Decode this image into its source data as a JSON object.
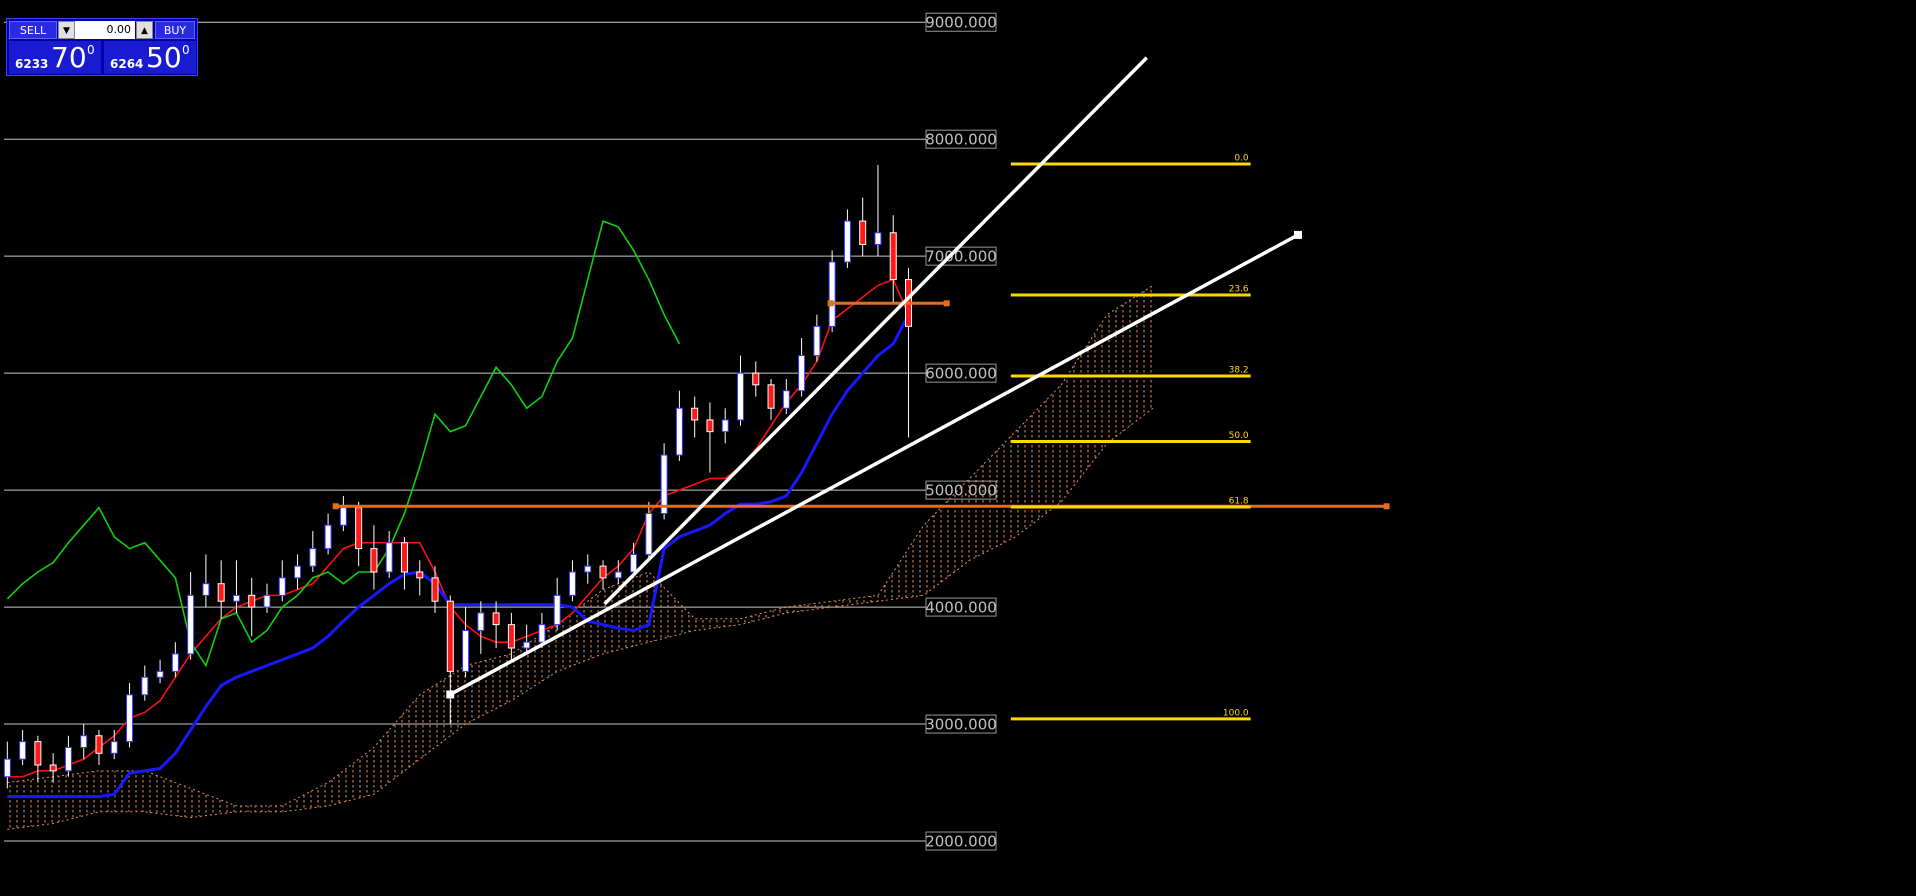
{
  "trade_panel": {
    "sell_label": "SELL",
    "lot": "0.00",
    "buy_label": "BUY",
    "bid": {
      "prefix": "6233",
      "big": "70",
      "sup": "0"
    },
    "ask": {
      "prefix": "6264",
      "big": "50",
      "sup": "0"
    }
  },
  "chart_data": {
    "type": "candlestick",
    "xlim": [
      -0.48,
      124.96
    ],
    "ylim": [
      1530,
      9190
    ],
    "grid": true,
    "yticks": [
      {
        "value": 9000,
        "label": "9000.000"
      },
      {
        "value": 8000,
        "label": "8000.000"
      },
      {
        "value": 7000,
        "label": "7000.000"
      },
      {
        "value": 6000,
        "label": "6000.000"
      },
      {
        "value": 5000,
        "label": "5000.000"
      },
      {
        "value": 4000,
        "label": "4000.000"
      },
      {
        "value": 3000,
        "label": "3000.000"
      },
      {
        "value": 2000,
        "label": "2000.000"
      }
    ],
    "x": [
      0,
      1,
      2,
      3,
      4,
      5,
      6,
      7,
      8,
      9,
      10,
      11,
      12,
      13,
      14,
      15,
      16,
      17,
      18,
      19,
      20,
      21,
      22,
      23,
      24,
      25,
      26,
      27,
      28,
      29,
      30,
      31,
      32,
      33,
      34,
      35,
      36,
      37,
      38,
      39,
      40,
      41,
      42,
      43,
      44,
      45,
      46,
      47,
      48,
      49,
      50,
      51,
      52,
      53,
      54,
      55,
      56,
      57,
      58,
      59
    ],
    "open": [
      2550,
      2700,
      2850,
      2650,
      2600,
      2800,
      2900,
      2750,
      2850,
      3250,
      3400,
      3450,
      3600,
      4100,
      4200,
      4050,
      4100,
      4000,
      4100,
      4250,
      4350,
      4500,
      4700,
      4850,
      4500,
      4300,
      4550,
      4300,
      4250,
      4050,
      3450,
      3800,
      3950,
      3850,
      3650,
      3700,
      3850,
      4100,
      4300,
      4350,
      4250,
      4300,
      4450,
      4800,
      5300,
      5700,
      5600,
      5500,
      5600,
      6000,
      5900,
      5700,
      5850,
      6150,
      6400,
      6950,
      7300,
      7100,
      7200,
      6800
    ],
    "high": [
      2850,
      2950,
      2900,
      2750,
      2900,
      3000,
      2950,
      2950,
      3350,
      3500,
      3550,
      3700,
      4300,
      4450,
      4400,
      4400,
      4250,
      4200,
      4400,
      4450,
      4650,
      4800,
      4950,
      4900,
      4700,
      4650,
      4600,
      4400,
      4350,
      4100,
      4000,
      4050,
      4050,
      3950,
      3850,
      3950,
      4250,
      4400,
      4450,
      4400,
      4400,
      4550,
      4900,
      5400,
      5850,
      5800,
      5750,
      5700,
      6150,
      6100,
      5950,
      5950,
      6300,
      6500,
      7050,
      7400,
      7500,
      7780,
      7350,
      6900
    ],
    "low": [
      2450,
      2650,
      2500,
      2500,
      2550,
      2700,
      2650,
      2700,
      2800,
      3200,
      3350,
      3400,
      3550,
      4000,
      3900,
      3950,
      3750,
      3950,
      4050,
      4150,
      4300,
      4450,
      4650,
      4350,
      4150,
      4250,
      4150,
      4100,
      3950,
      3000,
      3400,
      3600,
      3650,
      3550,
      3600,
      3650,
      3800,
      4050,
      4200,
      4150,
      4200,
      4250,
      4400,
      4750,
      5250,
      5450,
      5150,
      5400,
      5550,
      5800,
      5600,
      5650,
      5800,
      6100,
      6350,
      6900,
      7000,
      7000,
      6600,
      5450
    ],
    "close": [
      2700,
      2850,
      2650,
      2600,
      2800,
      2900,
      2750,
      2850,
      3250,
      3400,
      3450,
      3600,
      4100,
      4200,
      4050,
      4100,
      4000,
      4100,
      4250,
      4350,
      4500,
      4700,
      4850,
      4500,
      4300,
      4550,
      4300,
      4250,
      4050,
      3450,
      3800,
      3950,
      3850,
      3650,
      3700,
      3850,
      4100,
      4300,
      4350,
      4250,
      4300,
      4450,
      4800,
      5300,
      5700,
      5600,
      5500,
      5600,
      6000,
      5900,
      5700,
      5850,
      6150,
      6400,
      6950,
      7300,
      7100,
      7200,
      6800,
      6400
    ],
    "bull_color": "#3a3aff",
    "bear_color": "#ff1a1a",
    "wick_color": "#ffffff",
    "series": [
      {
        "color": "#ff1010",
        "values": [
          2550,
          2550,
          2600,
          2600,
          2650,
          2700,
          2800,
          2900,
          3050,
          3100,
          3200,
          3400,
          3600,
          3750,
          3900,
          4000,
          4050,
          4100,
          4100,
          4150,
          4200,
          4350,
          4500,
          4550,
          4550,
          4550,
          4550,
          4550,
          4300,
          4000,
          3850,
          3750,
          3700,
          3700,
          3750,
          3800,
          3850,
          3950,
          4100,
          4250,
          4350,
          4500,
          4800,
          4950,
          5000,
          5050,
          5100,
          5100,
          5200,
          5350,
          5550,
          5750,
          5900,
          6100,
          6450,
          6550,
          6650,
          6750,
          6800,
          6500
        ]
      },
      {
        "color": "#1818ff",
        "values": [
          2380,
          2380,
          2380,
          2380,
          2380,
          2380,
          2380,
          2400,
          2580,
          2600,
          2620,
          2750,
          2950,
          3150,
          3330,
          3400,
          3450,
          3500,
          3550,
          3600,
          3650,
          3750,
          3880,
          4000,
          4100,
          4200,
          4280,
          4300,
          4200,
          4020,
          4020,
          4020,
          4020,
          4020,
          4020,
          4020,
          4020,
          4000,
          3880,
          3850,
          3820,
          3800,
          3850,
          4500,
          4600,
          4650,
          4700,
          4800,
          4880,
          4880,
          4900,
          4950,
          5150,
          5400,
          5650,
          5850,
          6000,
          6150,
          6250,
          6500
        ]
      },
      {
        "color": "#10d010",
        "values": [
          4070,
          4200,
          4300,
          4380,
          4550,
          4700,
          4850,
          4600,
          4500,
          4550,
          4400,
          4250,
          3700,
          3500,
          3900,
          3950,
          3700,
          3800,
          4000,
          4100,
          4250,
          4300,
          4200,
          4300,
          4300,
          4500,
          4800,
          5200,
          5650,
          5500,
          5550,
          5800,
          6050,
          5900,
          5700,
          5800,
          6100,
          6300,
          6800,
          7300,
          7250,
          7050,
          6800,
          6500,
          6250,
          null,
          null,
          null,
          null,
          null,
          null,
          null,
          null,
          null,
          null,
          null,
          null,
          null,
          null,
          null
        ]
      }
    ],
    "cloud": {
      "color": "#e8905a",
      "x": [
        0,
        3,
        6,
        9,
        12,
        15,
        18,
        21,
        24,
        27,
        30,
        33,
        36,
        39,
        42,
        45,
        48,
        51,
        54,
        57,
        60,
        63,
        66,
        69,
        72,
        75
      ],
      "upper": [
        2500,
        2550,
        2600,
        2600,
        2450,
        2300,
        2300,
        2500,
        2800,
        3250,
        3500,
        3600,
        3850,
        4150,
        4300,
        3900,
        3900,
        4000,
        4050,
        4100,
        4700,
        5100,
        5500,
        5900,
        6500,
        6750
      ],
      "lower": [
        2100,
        2150,
        2250,
        2250,
        2200,
        2250,
        2250,
        2300,
        2400,
        2700,
        3000,
        3200,
        3450,
        3600,
        3700,
        3800,
        3850,
        3950,
        4000,
        4050,
        4100,
        4400,
        4600,
        4900,
        5400,
        5700
      ]
    },
    "trendlines": [
      {
        "color": "#ffffff",
        "x": [
          39.1,
          74.6
        ],
        "values": [
          4026,
          8697
        ]
      },
      {
        "color": "#ffffff",
        "x": [
          29.0,
          84.5
        ],
        "values": [
          3253,
          7182
        ]
      }
    ],
    "hlines": [
      {
        "color": "#e07020",
        "value": 4862,
        "x": [
          21.5,
          90.3
        ]
      },
      {
        "color": "#e07020",
        "value": 6597,
        "x": [
          53.9,
          61.5
        ]
      }
    ],
    "fibonacci": {
      "color": "#ffd700",
      "x": [
        65.7,
        81.4
      ],
      "levels": [
        {
          "value": 7788,
          "label": "0.0"
        },
        {
          "value": 6668,
          "label": "23.6"
        },
        {
          "value": 5976,
          "label": "38.2"
        },
        {
          "value": 5416,
          "label": "50.0"
        },
        {
          "value": 4856,
          "label": "61.8"
        },
        {
          "value": 3044,
          "label": "100.0"
        }
      ]
    }
  }
}
